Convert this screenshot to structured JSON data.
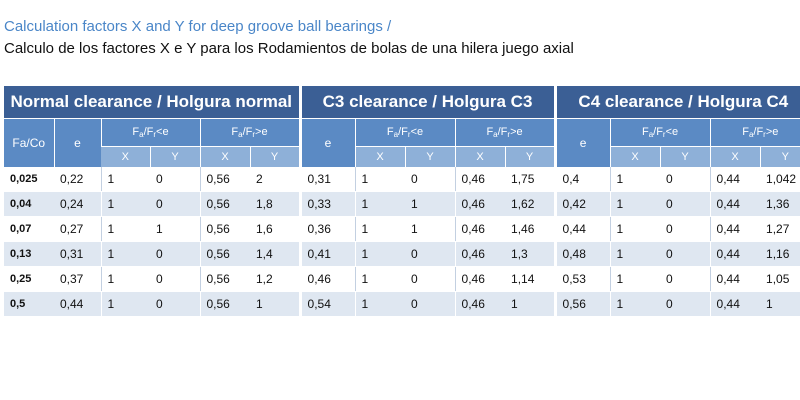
{
  "title_en": "Calculation factors X and Y for deep groove ball bearings /",
  "title_es": "Calculo de los factores X e Y para los Rodamientos de bolas de una hilera juego axial",
  "group_headers": [
    "Normal clearance / Holgura normal",
    "C3 clearance / Holgura C3",
    "C4 clearance / Holgura C4"
  ],
  "col_fa_co": "Fa/Co",
  "col_e": "e",
  "ratio_le": {
    "a": "F",
    "a_sub": "a",
    "b": "/F",
    "b_sub": "r",
    "op": "<e"
  },
  "ratio_gt": {
    "a": "F",
    "a_sub": "a",
    "b": "/F",
    "b_sub": "r",
    "op": ">e"
  },
  "col_x": "X",
  "col_y": "Y",
  "rows": [
    [
      "0,025",
      "0,22",
      "1",
      "0",
      "0,56",
      "2",
      "0,31",
      "1",
      "0",
      "0,46",
      "1,75",
      "0,4",
      "1",
      "0",
      "0,44",
      "1,042"
    ],
    [
      "0,04",
      "0,24",
      "1",
      "0",
      "0,56",
      "1,8",
      "0,33",
      "1",
      "1",
      "0,46",
      "1,62",
      "0,42",
      "1",
      "0",
      "0,44",
      "1,36"
    ],
    [
      "0,07",
      "0,27",
      "1",
      "1",
      "0,56",
      "1,6",
      "0,36",
      "1",
      "1",
      "0,46",
      "1,46",
      "0,44",
      "1",
      "0",
      "0,44",
      "1,27"
    ],
    [
      "0,13",
      "0,31",
      "1",
      "0",
      "0,56",
      "1,4",
      "0,41",
      "1",
      "0",
      "0,46",
      "1,3",
      "0,48",
      "1",
      "0",
      "0,44",
      "1,16"
    ],
    [
      "0,25",
      "0,37",
      "1",
      "0",
      "0,56",
      "1,2",
      "0,46",
      "1",
      "0",
      "0,46",
      "1,14",
      "0,53",
      "1",
      "0",
      "0,44",
      "1,05"
    ],
    [
      "0,5",
      "0,44",
      "1",
      "0",
      "0,56",
      "1",
      "0,54",
      "1",
      "0",
      "0,46",
      "1",
      "0,56",
      "1",
      "0",
      "0,44",
      "1"
    ]
  ],
  "colors": {
    "title_accent": "#4a86c8",
    "group_header_bg": "#3b5f95",
    "sub_header_bg": "#5b8ac4",
    "xy_header_bg": "#8eb0d8",
    "row_shade": "#dfe7f1"
  }
}
